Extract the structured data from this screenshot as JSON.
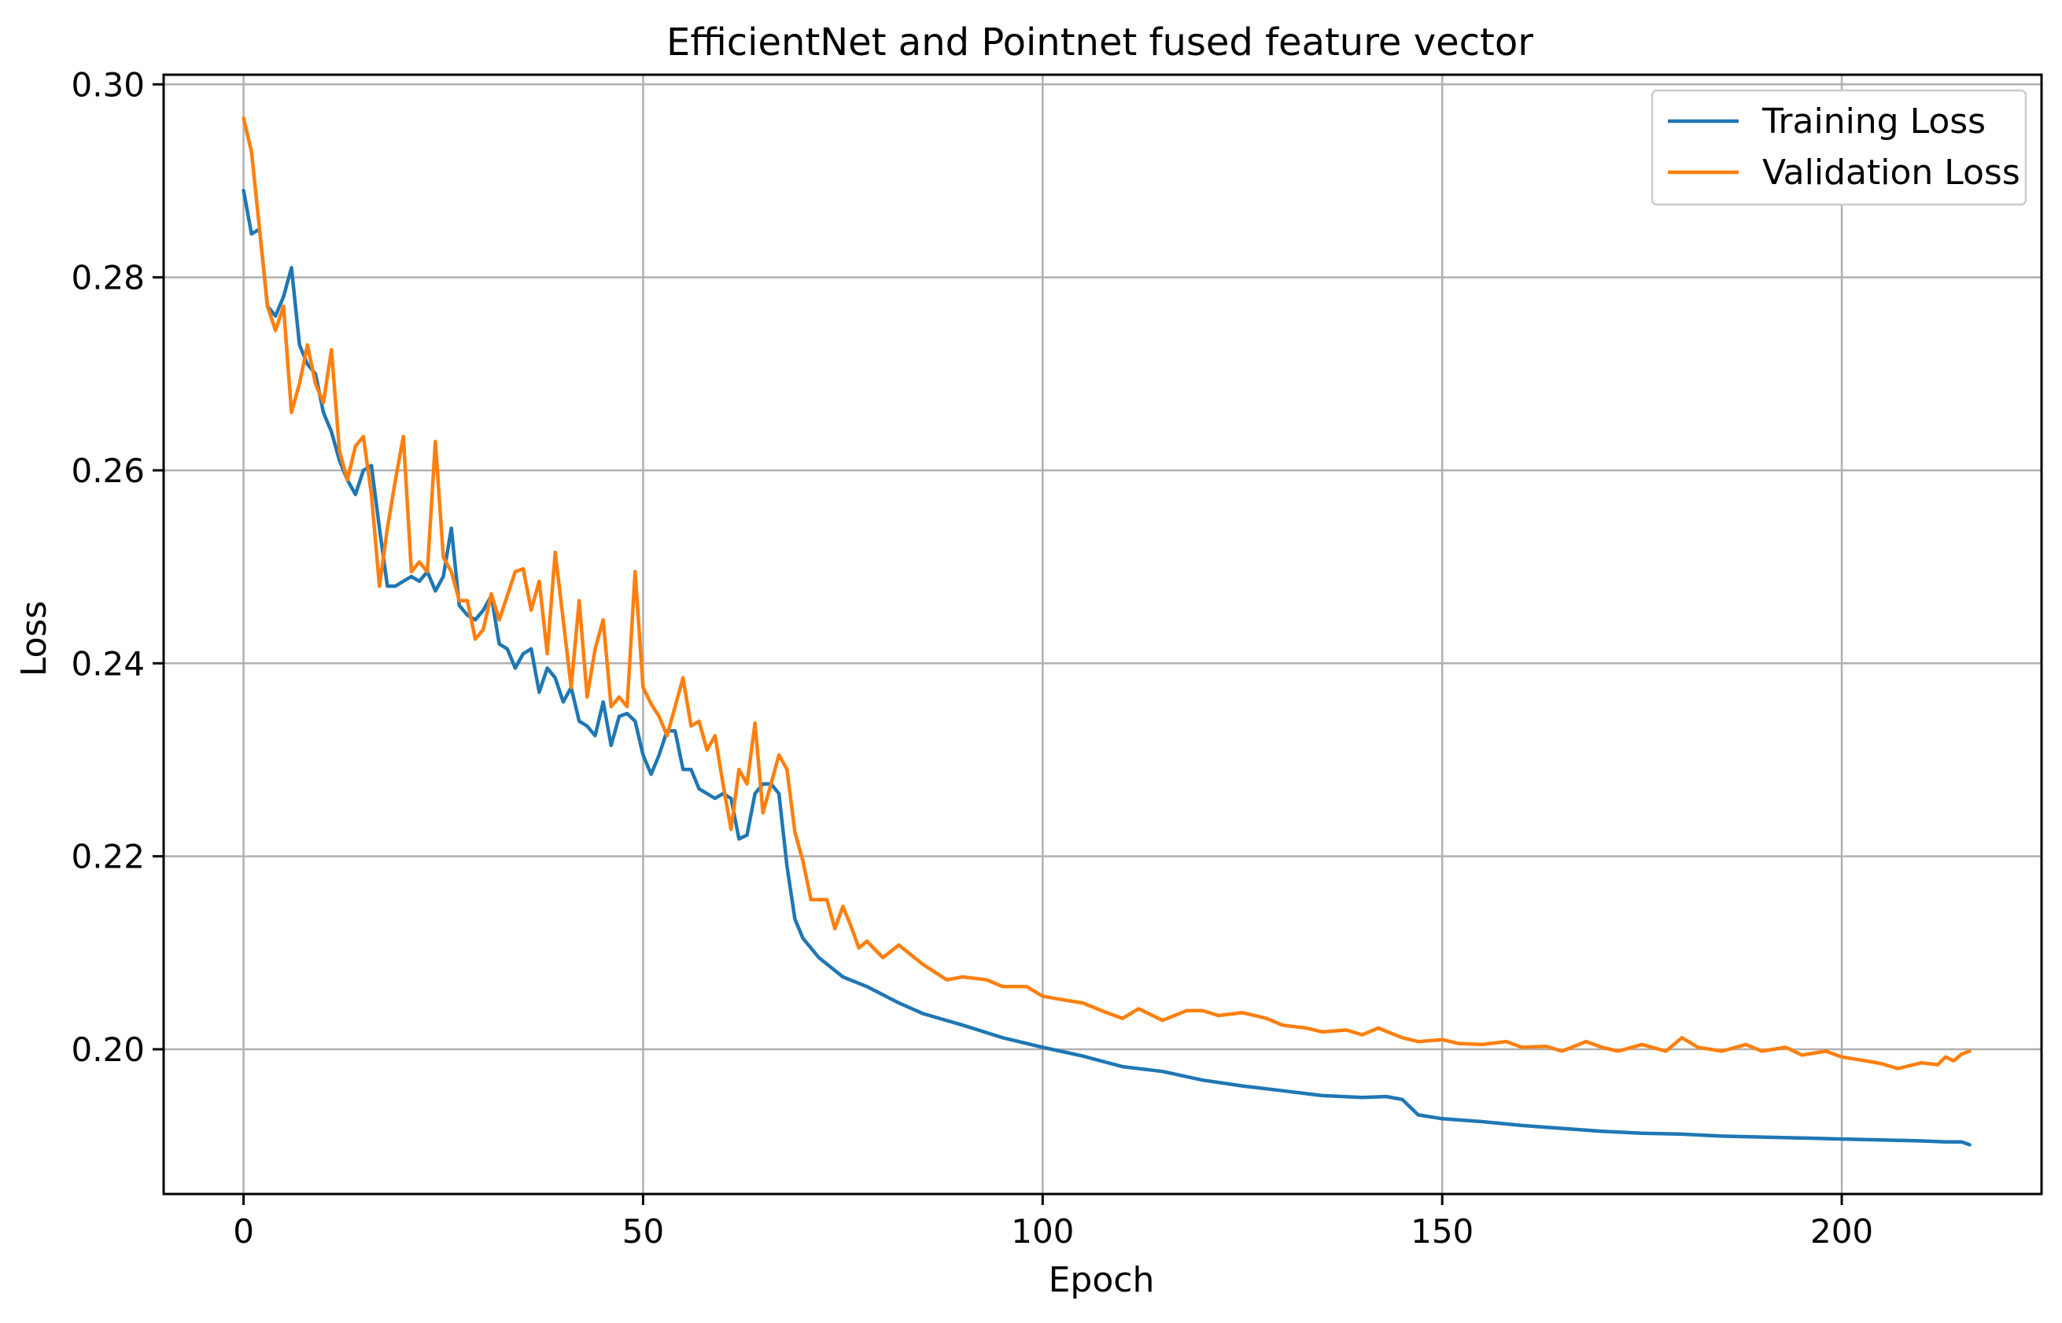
{
  "chart_data": {
    "type": "line",
    "title": "EfficientNet and Pointnet fused feature vector",
    "xlabel": "Epoch",
    "ylabel": "Loss",
    "xlim": [
      -10,
      225
    ],
    "ylim": [
      0.185,
      0.301
    ],
    "xticks": [
      0,
      50,
      100,
      150,
      200
    ],
    "yticks": [
      0.2,
      0.22,
      0.24,
      0.26,
      0.28,
      0.3
    ],
    "xtick_labels": [
      "0",
      "50",
      "100",
      "150",
      "200"
    ],
    "ytick_labels": [
      "0.20",
      "0.22",
      "0.24",
      "0.26",
      "0.28",
      "0.30"
    ],
    "grid": true,
    "legend_position": "top-right",
    "series": [
      {
        "name": "Training Loss",
        "color": "#1f77b4",
        "anchors": [
          [
            0,
            0.289
          ],
          [
            1,
            0.2845
          ],
          [
            2,
            0.285
          ],
          [
            3,
            0.277
          ],
          [
            4,
            0.276
          ],
          [
            5,
            0.278
          ],
          [
            6,
            0.281
          ],
          [
            7,
            0.273
          ],
          [
            8,
            0.271
          ],
          [
            9,
            0.27
          ],
          [
            10,
            0.266
          ],
          [
            11,
            0.264
          ],
          [
            12,
            0.261
          ],
          [
            13,
            0.259
          ],
          [
            14,
            0.2575
          ],
          [
            15,
            0.26
          ],
          [
            16,
            0.2605
          ],
          [
            17,
            0.254
          ],
          [
            18,
            0.248
          ],
          [
            19,
            0.248
          ],
          [
            20,
            0.2485
          ],
          [
            21,
            0.249
          ],
          [
            22,
            0.2485
          ],
          [
            23,
            0.2495
          ],
          [
            24,
            0.2475
          ],
          [
            25,
            0.249
          ],
          [
            26,
            0.254
          ],
          [
            27,
            0.246
          ],
          [
            28,
            0.245
          ],
          [
            29,
            0.2445
          ],
          [
            30,
            0.2455
          ],
          [
            31,
            0.247
          ],
          [
            32,
            0.242
          ],
          [
            33,
            0.2415
          ],
          [
            34,
            0.2395
          ],
          [
            35,
            0.241
          ],
          [
            36,
            0.2415
          ],
          [
            37,
            0.237
          ],
          [
            38,
            0.2395
          ],
          [
            39,
            0.2385
          ],
          [
            40,
            0.236
          ],
          [
            41,
            0.2375
          ],
          [
            42,
            0.234
          ],
          [
            43,
            0.2335
          ],
          [
            44,
            0.2325
          ],
          [
            45,
            0.236
          ],
          [
            46,
            0.2315
          ],
          [
            47,
            0.2345
          ],
          [
            48,
            0.2348
          ],
          [
            49,
            0.234
          ],
          [
            50,
            0.2305
          ],
          [
            51,
            0.2285
          ],
          [
            52,
            0.2305
          ],
          [
            53,
            0.233
          ],
          [
            54,
            0.233
          ],
          [
            55,
            0.229
          ],
          [
            56,
            0.229
          ],
          [
            57,
            0.227
          ],
          [
            58,
            0.2265
          ],
          [
            59,
            0.226
          ],
          [
            60,
            0.2265
          ],
          [
            61,
            0.226
          ],
          [
            62,
            0.2218
          ],
          [
            63,
            0.2222
          ],
          [
            64,
            0.2265
          ],
          [
            65,
            0.2275
          ],
          [
            66,
            0.2275
          ],
          [
            67,
            0.2265
          ],
          [
            68,
            0.219
          ],
          [
            69,
            0.2135
          ],
          [
            70,
            0.2115
          ],
          [
            72,
            0.2095
          ],
          [
            75,
            0.2075
          ],
          [
            78,
            0.2065
          ],
          [
            82,
            0.2048
          ],
          [
            85,
            0.2037
          ],
          [
            90,
            0.2025
          ],
          [
            95,
            0.2012
          ],
          [
            100,
            0.2002
          ],
          [
            105,
            0.1993
          ],
          [
            110,
            0.1982
          ],
          [
            115,
            0.1977
          ],
          [
            120,
            0.1968
          ],
          [
            125,
            0.1962
          ],
          [
            130,
            0.1957
          ],
          [
            135,
            0.1952
          ],
          [
            140,
            0.195
          ],
          [
            143,
            0.1951
          ],
          [
            145,
            0.1948
          ],
          [
            147,
            0.1932
          ],
          [
            150,
            0.1928
          ],
          [
            155,
            0.1925
          ],
          [
            160,
            0.1921
          ],
          [
            165,
            0.1918
          ],
          [
            170,
            0.1915
          ],
          [
            175,
            0.1913
          ],
          [
            180,
            0.1912
          ],
          [
            185,
            0.191
          ],
          [
            190,
            0.1909
          ],
          [
            195,
            0.1908
          ],
          [
            200,
            0.1907
          ],
          [
            205,
            0.1906
          ],
          [
            210,
            0.1905
          ],
          [
            213,
            0.1904
          ],
          [
            215,
            0.1904
          ],
          [
            216,
            0.1901
          ]
        ]
      },
      {
        "name": "Validation Loss",
        "color": "#ff7f0e",
        "anchors": [
          [
            0,
            0.2965
          ],
          [
            1,
            0.293
          ],
          [
            2,
            0.285
          ],
          [
            3,
            0.277
          ],
          [
            4,
            0.2745
          ],
          [
            5,
            0.277
          ],
          [
            6,
            0.266
          ],
          [
            7,
            0.269
          ],
          [
            8,
            0.273
          ],
          [
            9,
            0.269
          ],
          [
            10,
            0.267
          ],
          [
            11,
            0.2725
          ],
          [
            12,
            0.262
          ],
          [
            13,
            0.259
          ],
          [
            14,
            0.2625
          ],
          [
            15,
            0.2635
          ],
          [
            16,
            0.2575
          ],
          [
            17,
            0.248
          ],
          [
            18,
            0.254
          ],
          [
            19,
            0.259
          ],
          [
            20,
            0.2635
          ],
          [
            21,
            0.2495
          ],
          [
            22,
            0.2505
          ],
          [
            23,
            0.2495
          ],
          [
            24,
            0.263
          ],
          [
            25,
            0.251
          ],
          [
            26,
            0.2495
          ],
          [
            27,
            0.2465
          ],
          [
            28,
            0.2465
          ],
          [
            29,
            0.2425
          ],
          [
            30,
            0.2435
          ],
          [
            31,
            0.2472
          ],
          [
            32,
            0.2445
          ],
          [
            33,
            0.247
          ],
          [
            34,
            0.2495
          ],
          [
            35,
            0.2498
          ],
          [
            36,
            0.2455
          ],
          [
            37,
            0.2485
          ],
          [
            38,
            0.241
          ],
          [
            39,
            0.2515
          ],
          [
            40,
            0.2445
          ],
          [
            41,
            0.2375
          ],
          [
            42,
            0.2465
          ],
          [
            43,
            0.2365
          ],
          [
            44,
            0.2415
          ],
          [
            45,
            0.2445
          ],
          [
            46,
            0.2355
          ],
          [
            47,
            0.2365
          ],
          [
            48,
            0.2355
          ],
          [
            49,
            0.2495
          ],
          [
            50,
            0.2375
          ],
          [
            51,
            0.2358
          ],
          [
            52,
            0.2345
          ],
          [
            53,
            0.2325
          ],
          [
            54,
            0.2355
          ],
          [
            55,
            0.2385
          ],
          [
            56,
            0.2335
          ],
          [
            57,
            0.234
          ],
          [
            58,
            0.231
          ],
          [
            59,
            0.2325
          ],
          [
            60,
            0.2275
          ],
          [
            61,
            0.2228
          ],
          [
            62,
            0.229
          ],
          [
            63,
            0.2275
          ],
          [
            64,
            0.2338
          ],
          [
            65,
            0.2245
          ],
          [
            66,
            0.2275
          ],
          [
            67,
            0.2305
          ],
          [
            68,
            0.229
          ],
          [
            69,
            0.2225
          ],
          [
            70,
            0.2195
          ],
          [
            71,
            0.2155
          ],
          [
            72,
            0.2155
          ],
          [
            73,
            0.2155
          ],
          [
            74,
            0.2125
          ],
          [
            75,
            0.2148
          ],
          [
            76,
            0.2128
          ],
          [
            77,
            0.2105
          ],
          [
            78,
            0.2112
          ],
          [
            80,
            0.2095
          ],
          [
            82,
            0.2108
          ],
          [
            85,
            0.2088
          ],
          [
            88,
            0.2072
          ],
          [
            90,
            0.2075
          ],
          [
            93,
            0.2072
          ],
          [
            95,
            0.2065
          ],
          [
            98,
            0.2065
          ],
          [
            100,
            0.2055
          ],
          [
            102,
            0.2052
          ],
          [
            105,
            0.2048
          ],
          [
            108,
            0.2038
          ],
          [
            110,
            0.2032
          ],
          [
            112,
            0.2042
          ],
          [
            115,
            0.203
          ],
          [
            118,
            0.204
          ],
          [
            120,
            0.204
          ],
          [
            122,
            0.2035
          ],
          [
            125,
            0.2038
          ],
          [
            128,
            0.2032
          ],
          [
            130,
            0.2025
          ],
          [
            133,
            0.2022
          ],
          [
            135,
            0.2018
          ],
          [
            138,
            0.202
          ],
          [
            140,
            0.2015
          ],
          [
            142,
            0.2022
          ],
          [
            145,
            0.2012
          ],
          [
            147,
            0.2008
          ],
          [
            150,
            0.201
          ],
          [
            152,
            0.2006
          ],
          [
            155,
            0.2005
          ],
          [
            158,
            0.2008
          ],
          [
            160,
            0.2002
          ],
          [
            163,
            0.2003
          ],
          [
            165,
            0.1998
          ],
          [
            168,
            0.2008
          ],
          [
            170,
            0.2002
          ],
          [
            172,
            0.1998
          ],
          [
            175,
            0.2005
          ],
          [
            178,
            0.1998
          ],
          [
            180,
            0.2012
          ],
          [
            182,
            0.2002
          ],
          [
            185,
            0.1998
          ],
          [
            188,
            0.2005
          ],
          [
            190,
            0.1998
          ],
          [
            193,
            0.2002
          ],
          [
            195,
            0.1994
          ],
          [
            198,
            0.1998
          ],
          [
            200,
            0.1992
          ],
          [
            203,
            0.1988
          ],
          [
            205,
            0.1985
          ],
          [
            207,
            0.198
          ],
          [
            208,
            0.1982
          ],
          [
            210,
            0.1986
          ],
          [
            212,
            0.1984
          ],
          [
            213,
            0.1992
          ],
          [
            214,
            0.1988
          ],
          [
            215,
            0.1995
          ],
          [
            216,
            0.1998
          ]
        ]
      }
    ]
  }
}
